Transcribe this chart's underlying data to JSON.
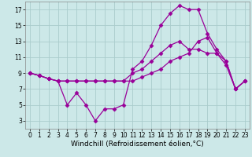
{
  "xlabel": "Windchill (Refroidissement éolien,°C)",
  "x": [
    0,
    1,
    2,
    3,
    4,
    5,
    6,
    7,
    8,
    9,
    10,
    11,
    12,
    13,
    14,
    15,
    16,
    17,
    18,
    19,
    20,
    21,
    22,
    23
  ],
  "line1": [
    9,
    8.7,
    8.3,
    8,
    5,
    6.5,
    5,
    3,
    4.5,
    4.5,
    5,
    9.5,
    10.5,
    12.5,
    15,
    16.5,
    17.5,
    17,
    17,
    14,
    12,
    10.5,
    7,
    8
  ],
  "line2": [
    9,
    8.7,
    8.3,
    8,
    8,
    8,
    8,
    8,
    8,
    8,
    8,
    9,
    9.5,
    10.5,
    11.5,
    12.5,
    13,
    12,
    12,
    11.5,
    11.5,
    10.5,
    7,
    8
  ],
  "line3": [
    9,
    8.7,
    8.3,
    8,
    8,
    8,
    8,
    8,
    8,
    8,
    8,
    8,
    8.5,
    9,
    9.5,
    10.5,
    11,
    11.5,
    13,
    13.5,
    11.5,
    10,
    7,
    8
  ],
  "line_color": "#990099",
  "marker": "D",
  "markersize": 2.5,
  "bg_color": "#cce8e8",
  "grid_color": "#aacccc",
  "ylim": [
    2,
    18
  ],
  "xlim": [
    -0.5,
    23.5
  ],
  "yticks": [
    3,
    5,
    7,
    9,
    11,
    13,
    15,
    17
  ],
  "xticks": [
    0,
    1,
    2,
    3,
    4,
    5,
    6,
    7,
    8,
    9,
    10,
    11,
    12,
    13,
    14,
    15,
    16,
    17,
    18,
    19,
    20,
    21,
    22,
    23
  ],
  "linewidth": 0.9,
  "xlabel_fontsize": 6.5,
  "tick_fontsize": 5.5
}
